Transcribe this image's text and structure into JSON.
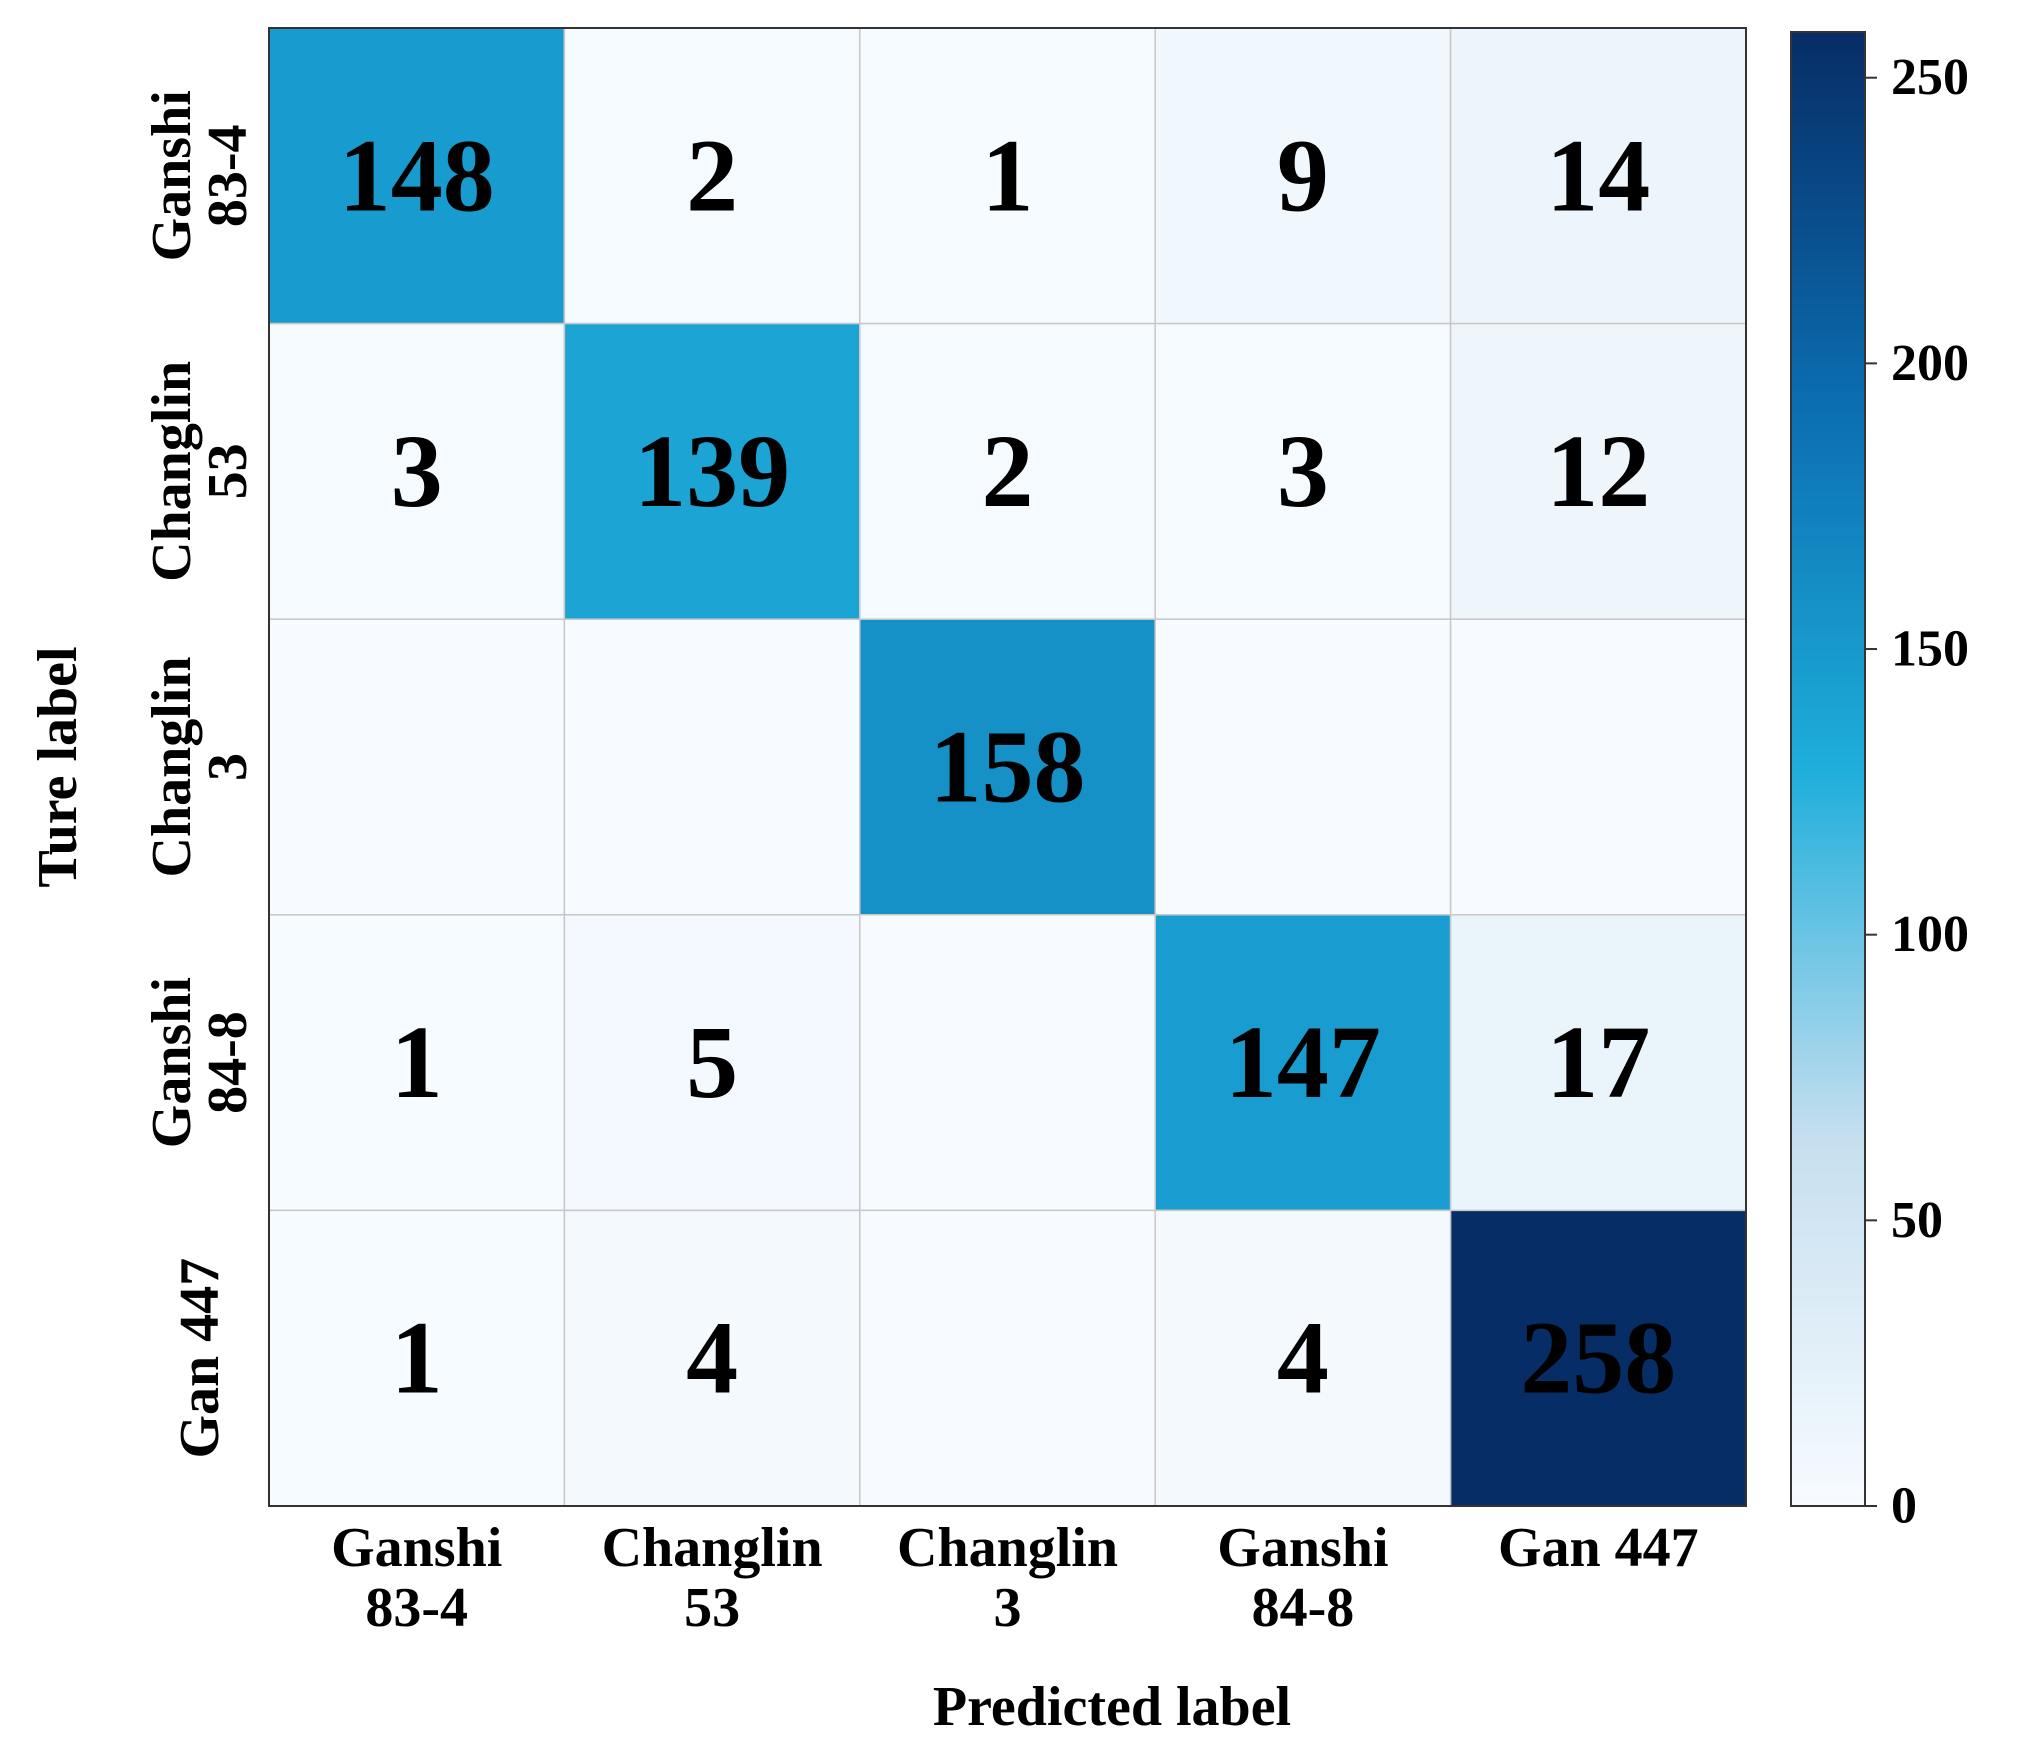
{
  "chart_data": {
    "type": "heatmap",
    "categories": [
      [
        "Ganshi",
        "83-4"
      ],
      [
        "Changlin",
        "53"
      ],
      [
        "Changlin",
        "3"
      ],
      [
        "Ganshi",
        "84-8"
      ],
      [
        "Gan 447"
      ]
    ],
    "values": [
      [
        148,
        2,
        1,
        9,
        14
      ],
      [
        3,
        139,
        2,
        3,
        12
      ],
      [
        null,
        null,
        158,
        null,
        null
      ],
      [
        1,
        5,
        null,
        147,
        17
      ],
      [
        1,
        4,
        null,
        4,
        258
      ]
    ],
    "xlabel": "Predicted label",
    "ylabel": "Ture label",
    "colorbar": {
      "ylim": [
        0,
        258
      ],
      "yticks": [
        0,
        50,
        100,
        150,
        200,
        250
      ]
    },
    "colormap": [
      "#f7fbff",
      "#c6dfef",
      "#1eaedb",
      "#0b6db0",
      "#072d66"
    ],
    "value_color": "#ff0000"
  }
}
